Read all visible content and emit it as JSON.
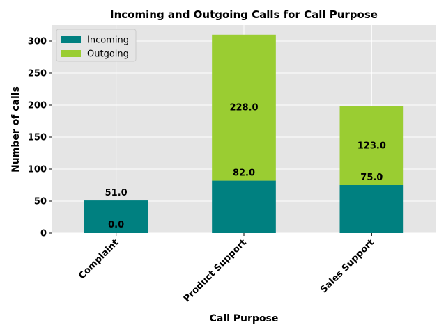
{
  "chart_data": {
    "type": "bar",
    "stacked": true,
    "title": "Incoming and Outgoing Calls for Call Purpose",
    "xlabel": "Call Purpose",
    "ylabel": "Number of calls",
    "categories": [
      "Complaint",
      "Product Support",
      "Sales Support"
    ],
    "series": [
      {
        "name": "Incoming",
        "values": [
          51,
          82,
          75
        ],
        "color": "#008080"
      },
      {
        "name": "Outgoing",
        "values": [
          0,
          228,
          123
        ],
        "color": "#9ACD32"
      }
    ],
    "data_labels": [
      {
        "series": "Incoming",
        "labels": [
          "51.0",
          "82.0",
          "75.0"
        ]
      },
      {
        "series": "Outgoing",
        "labels": [
          "0.0",
          "228.0",
          "123.0"
        ]
      }
    ],
    "yticks": [
      0,
      50,
      100,
      150,
      200,
      250,
      300
    ],
    "ylim": [
      0,
      325
    ],
    "grid": true,
    "legend_position": "top-left",
    "background_color": "#E5E5E5"
  }
}
